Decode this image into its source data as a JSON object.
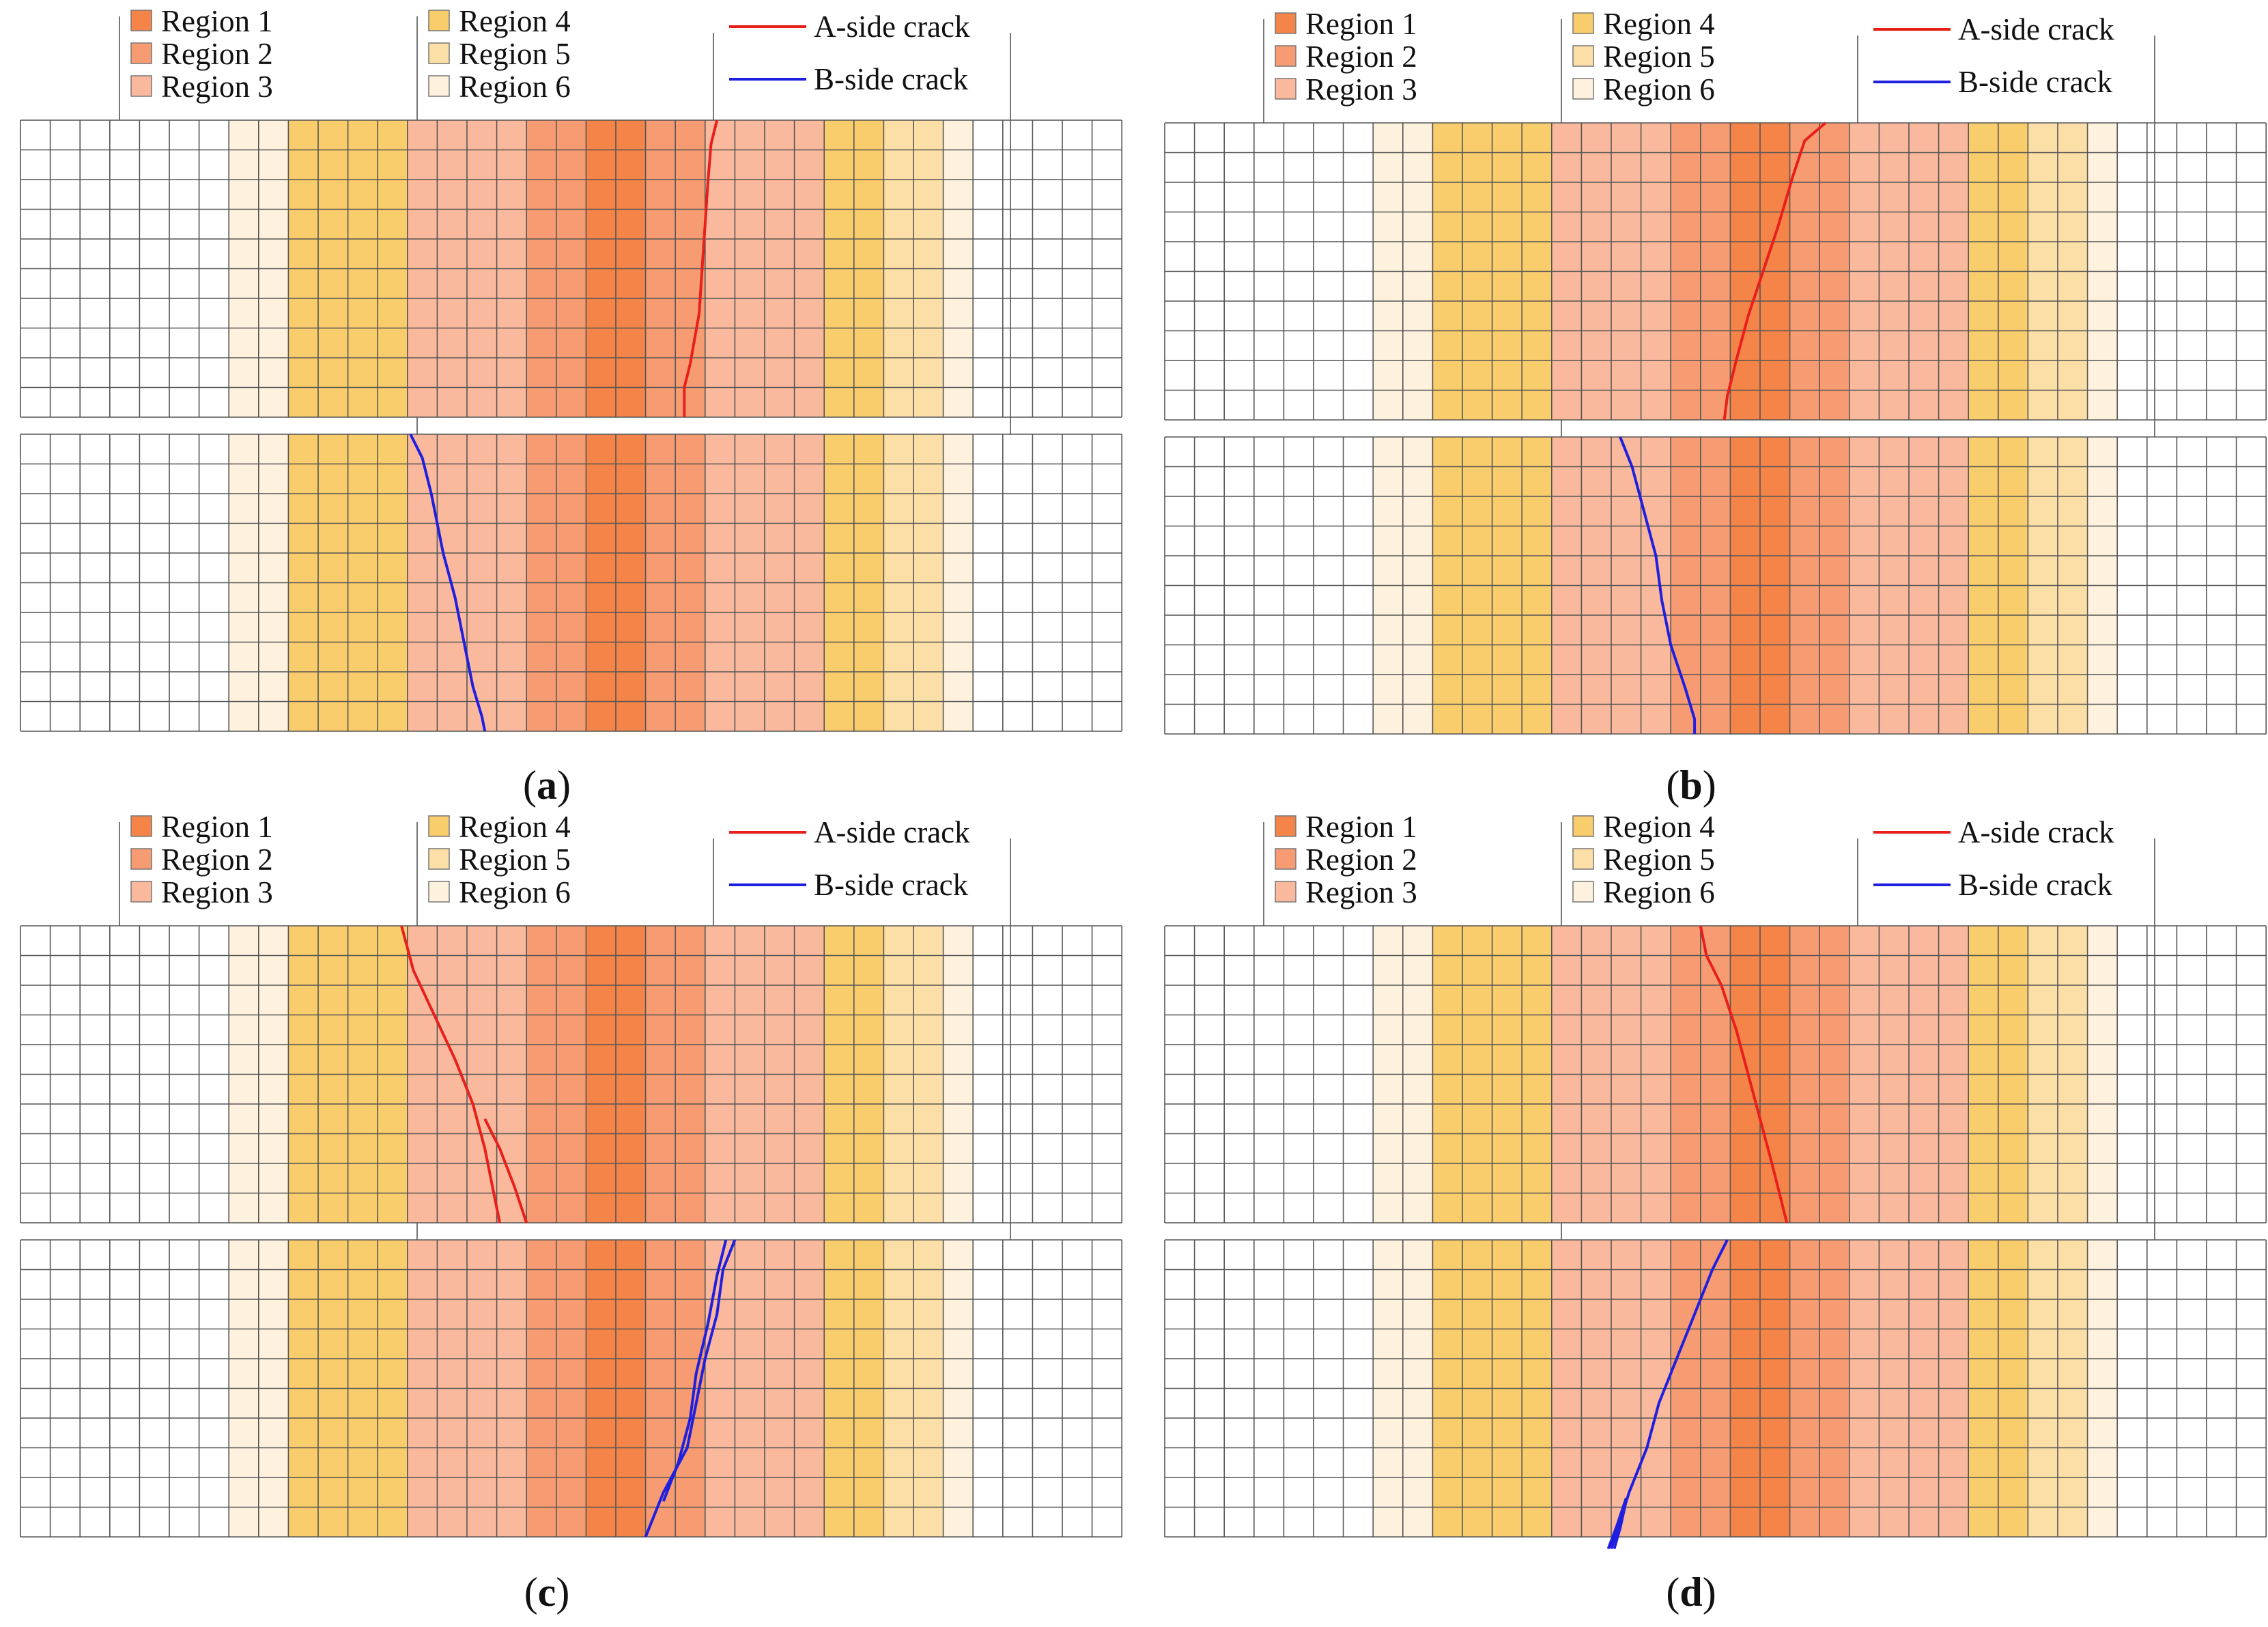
{
  "legend": {
    "regions": [
      {
        "label": "Region 1",
        "color": "#F58449"
      },
      {
        "label": "Region 2",
        "color": "#F79C72"
      },
      {
        "label": "Region 3",
        "color": "#FAB99D"
      },
      {
        "label": "Region 4",
        "color": "#F9CC6C"
      },
      {
        "label": "Region 5",
        "color": "#FCDFA6"
      },
      {
        "label": "Region 6",
        "color": "#FEF1DE"
      }
    ],
    "cracks": [
      {
        "label": "A-side crack",
        "color": "#E8201C"
      },
      {
        "label": "B-side crack",
        "color": "#1F1FE0"
      }
    ]
  },
  "mesh": {
    "columns": 37,
    "rows_per_plate": 10,
    "region_bands": [
      {
        "region": 6,
        "from": 7,
        "to": 9
      },
      {
        "region": 4,
        "from": 9,
        "to": 13
      },
      {
        "region": 3,
        "from": 13,
        "to": 17
      },
      {
        "region": 2,
        "from": 17,
        "to": 19
      },
      {
        "region": 1,
        "from": 19,
        "to": 21
      },
      {
        "region": 2,
        "from": 21,
        "to": 23
      },
      {
        "region": 3,
        "from": 23,
        "to": 27
      },
      {
        "region": 4,
        "from": 27,
        "to": 29
      },
      {
        "region": 5,
        "from": 29,
        "to": 31
      },
      {
        "region": 6,
        "from": 31,
        "to": 32
      }
    ]
  },
  "panels": [
    {
      "id": "a",
      "caption_letter": "a",
      "a_cracks": [
        [
          [
            23.4,
            0
          ],
          [
            23.2,
            0.8
          ],
          [
            23.1,
            2
          ],
          [
            23.0,
            3.5
          ],
          [
            22.9,
            5
          ],
          [
            22.8,
            6.5
          ],
          [
            22.5,
            8.2
          ],
          [
            22.3,
            9
          ],
          [
            22.3,
            10
          ]
        ]
      ],
      "b_cracks": [
        [
          [
            13.1,
            0
          ],
          [
            13.5,
            0.8
          ],
          [
            13.8,
            2
          ],
          [
            14.2,
            4
          ],
          [
            14.6,
            5.5
          ],
          [
            14.9,
            7
          ],
          [
            15.2,
            8.5
          ],
          [
            15.5,
            9.5
          ],
          [
            15.6,
            10
          ]
        ]
      ]
    },
    {
      "id": "b",
      "caption_letter": "b",
      "a_cracks": [
        [
          [
            22.2,
            0
          ],
          [
            21.5,
            0.6
          ],
          [
            21.1,
            1.8
          ],
          [
            20.6,
            3.5
          ],
          [
            20.1,
            5
          ],
          [
            19.6,
            6.5
          ],
          [
            19.2,
            8
          ],
          [
            18.9,
            9.2
          ],
          [
            18.8,
            10
          ]
        ]
      ],
      "b_cracks": [
        [
          [
            15.3,
            0
          ],
          [
            15.7,
            1
          ],
          [
            16.1,
            2.5
          ],
          [
            16.5,
            4
          ],
          [
            16.7,
            5.5
          ],
          [
            17.0,
            7
          ],
          [
            17.5,
            8.5
          ],
          [
            17.8,
            9.5
          ],
          [
            17.8,
            10
          ]
        ]
      ]
    },
    {
      "id": "c",
      "caption_letter": "c",
      "a_cracks": [
        [
          [
            12.8,
            0
          ],
          [
            13.2,
            1.5
          ],
          [
            13.9,
            3
          ],
          [
            14.6,
            4.5
          ],
          [
            15.2,
            6
          ],
          [
            15.6,
            7.5
          ],
          [
            15.9,
            9
          ],
          [
            16.1,
            10
          ]
        ],
        [
          [
            15.6,
            6.5
          ],
          [
            16.1,
            7.5
          ],
          [
            16.6,
            8.8
          ],
          [
            17.0,
            10
          ]
        ]
      ],
      "b_cracks": [
        [
          [
            24.0,
            0
          ],
          [
            23.6,
            1
          ],
          [
            23.4,
            2.5
          ],
          [
            23.0,
            4
          ],
          [
            22.7,
            5.5
          ],
          [
            22.4,
            7
          ],
          [
            21.6,
            8.5
          ],
          [
            21.2,
            9.5
          ],
          [
            21.0,
            10
          ]
        ],
        [
          [
            23.7,
            0
          ],
          [
            23.4,
            1.2
          ],
          [
            23.1,
            2.8
          ],
          [
            22.7,
            4.5
          ],
          [
            22.5,
            6
          ],
          [
            22.1,
            7.5
          ],
          [
            21.6,
            8.8
          ]
        ]
      ]
    },
    {
      "id": "d",
      "caption_letter": "d",
      "a_cracks": [
        [
          [
            18.0,
            0
          ],
          [
            18.2,
            1
          ],
          [
            18.7,
            2
          ],
          [
            19.2,
            3.5
          ],
          [
            19.6,
            5
          ],
          [
            20.0,
            6.5
          ],
          [
            20.4,
            8
          ],
          [
            20.7,
            9.2
          ],
          [
            20.9,
            10
          ]
        ]
      ],
      "b_cracks": [
        [
          [
            18.9,
            0
          ],
          [
            18.4,
            1
          ],
          [
            17.8,
            2.5
          ],
          [
            17.2,
            4
          ],
          [
            16.6,
            5.5
          ],
          [
            16.2,
            7
          ],
          [
            15.6,
            8.5
          ],
          [
            15.0,
            10.4
          ]
        ],
        [
          [
            15.5,
            8.7
          ],
          [
            15.2,
            9.6
          ],
          [
            14.9,
            10.4
          ]
        ],
        [
          [
            15.5,
            8.8
          ],
          [
            15.3,
            9.7
          ],
          [
            15.1,
            10.4
          ]
        ]
      ]
    }
  ]
}
